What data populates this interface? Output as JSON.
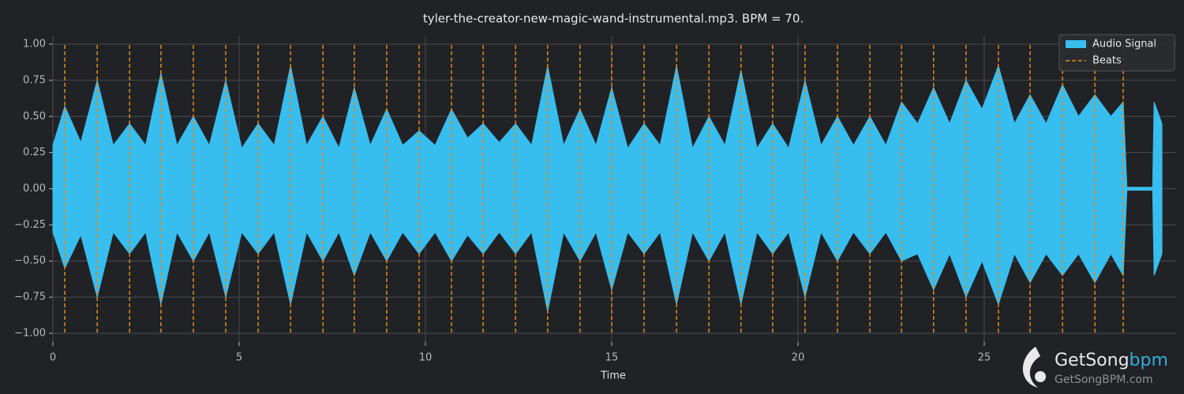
{
  "chart_data": {
    "type": "waveform",
    "title": "tyler-the-creator-new-magic-wand-instrumental.mp3. BPM =  70.",
    "xlabel": "Time",
    "xlim": [
      0,
      30.15
    ],
    "xticks": [
      0,
      5,
      10,
      15,
      20,
      25
    ],
    "ylim": [
      -1.06,
      1.06
    ],
    "yticks": [
      {
        "value": 1,
        "label": "1.00"
      },
      {
        "value": 0.75,
        "label": "0.75"
      },
      {
        "value": 0.5,
        "label": "0.50"
      },
      {
        "value": 0.25,
        "label": "0.25"
      },
      {
        "value": 0,
        "label": "0.00"
      },
      {
        "value": -0.25,
        "label": "−0.25"
      },
      {
        "value": -0.5,
        "label": "−0.50"
      },
      {
        "value": -0.75,
        "label": "−0.75"
      },
      {
        "value": -1,
        "label": "−1.00"
      }
    ],
    "grid": true,
    "legend": "upper right",
    "x": [
      0,
      0.32,
      0.75,
      1.19,
      1.62,
      2.06,
      2.49,
      2.9,
      3.33,
      3.77,
      4.2,
      4.64,
      5.07,
      5.51,
      5.94,
      6.38,
      6.81,
      7.25,
      7.68,
      8.09,
      8.52,
      8.96,
      9.39,
      9.83,
      10.26,
      10.7,
      11.13,
      11.55,
      11.98,
      12.42,
      12.85,
      13.28,
      13.71,
      14.15,
      14.58,
      15,
      15.43,
      15.87,
      16.3,
      16.74,
      17.17,
      17.61,
      18.04,
      18.47,
      18.9,
      19.32,
      19.75,
      20.19,
      20.62,
      21.06,
      21.49,
      21.93,
      22.36,
      22.78,
      23.21,
      23.64,
      24.07,
      24.51,
      24.94,
      25.38,
      25.81,
      26.23,
      26.66,
      27.1,
      27.53,
      27.97,
      28.4,
      28.73,
      28.83,
      29.52,
      29.56,
      29.77
    ],
    "series": [
      {
        "name": "Audio Signal",
        "color": "#38bdef",
        "values": [
          0.3,
          0.57,
          0.32,
          0.75,
          0.3,
          0.45,
          0.3,
          0.8,
          0.3,
          0.5,
          0.3,
          0.75,
          0.28,
          0.45,
          0.3,
          0.85,
          0.3,
          0.5,
          0.28,
          0.7,
          0.3,
          0.55,
          0.3,
          0.4,
          0.3,
          0.55,
          0.35,
          0.45,
          0.32,
          0.45,
          0.3,
          0.85,
          0.3,
          0.55,
          0.3,
          0.7,
          0.28,
          0.45,
          0.3,
          0.85,
          0.28,
          0.5,
          0.3,
          0.82,
          0.28,
          0.45,
          0.28,
          0.75,
          0.3,
          0.5,
          0.3,
          0.5,
          0.3,
          0.6,
          0.45,
          0.7,
          0.45,
          0.75,
          0.55,
          0.85,
          0.45,
          0.65,
          0.45,
          0.72,
          0.5,
          0.65,
          0.5,
          0.6,
          0.01,
          0.01,
          0.6,
          0.45
        ],
        "lower": [
          -0.3,
          -0.55,
          -0.32,
          -0.75,
          -0.3,
          -0.45,
          -0.3,
          -0.8,
          -0.3,
          -0.5,
          -0.3,
          -0.75,
          -0.3,
          -0.45,
          -0.3,
          -0.8,
          -0.3,
          -0.5,
          -0.3,
          -0.6,
          -0.3,
          -0.5,
          -0.3,
          -0.45,
          -0.3,
          -0.5,
          -0.32,
          -0.45,
          -0.3,
          -0.45,
          -0.3,
          -0.85,
          -0.3,
          -0.5,
          -0.3,
          -0.7,
          -0.3,
          -0.45,
          -0.3,
          -0.8,
          -0.3,
          -0.5,
          -0.3,
          -0.8,
          -0.3,
          -0.45,
          -0.3,
          -0.75,
          -0.3,
          -0.5,
          -0.3,
          -0.45,
          -0.3,
          -0.5,
          -0.45,
          -0.7,
          -0.45,
          -0.75,
          -0.5,
          -0.8,
          -0.45,
          -0.65,
          -0.45,
          -0.6,
          -0.45,
          -0.65,
          -0.45,
          -0.6,
          -0.01,
          -0.01,
          -0.6,
          -0.45
        ]
      }
    ],
    "beats": {
      "name": "Beats",
      "color": "#e08a1c",
      "x": [
        0.32,
        1.19,
        2.06,
        2.9,
        3.77,
        4.64,
        5.51,
        6.38,
        7.25,
        8.09,
        8.96,
        9.83,
        10.7,
        11.55,
        12.42,
        13.28,
        14.15,
        15,
        15.87,
        16.74,
        17.61,
        18.47,
        19.32,
        20.19,
        21.06,
        21.93,
        22.78,
        23.64,
        24.51,
        25.38,
        26.23,
        27.1,
        27.97,
        28.73
      ]
    }
  },
  "watermark": {
    "brand": "GetSong",
    "brand_accent": "bpm",
    "url": "GetSongBPM.com"
  }
}
